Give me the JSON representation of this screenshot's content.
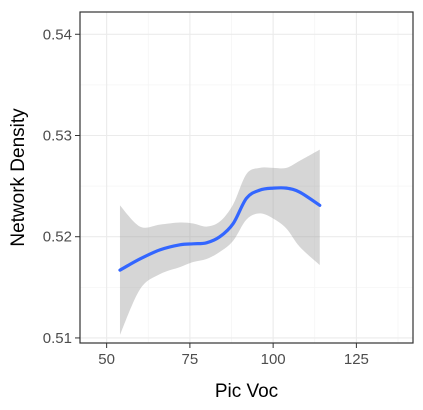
{
  "chart_data": {
    "type": "line",
    "title": "",
    "xlabel": "Pic Voc",
    "ylabel": "Network Density",
    "xlim": [
      42,
      142
    ],
    "ylim": [
      0.5095,
      0.5422
    ],
    "x_ticks": [
      50,
      75,
      100,
      125
    ],
    "x_tick_labels": [
      "50",
      "75",
      "100",
      "125"
    ],
    "y_ticks": [
      0.51,
      0.52,
      0.53,
      0.54
    ],
    "y_tick_labels": [
      "0.51",
      "0.52",
      "0.53",
      "0.54"
    ],
    "grid": true,
    "colors": {
      "line": "#3366ff",
      "ribbon": "#999999"
    },
    "series": [
      {
        "x": [
          54,
          60,
          66,
          72,
          76,
          80,
          84,
          88,
          92,
          96,
          100,
          104,
          108,
          114
        ],
        "y": [
          0.5167,
          0.5178,
          0.5187,
          0.5192,
          0.5193,
          0.5194,
          0.52,
          0.5213,
          0.5238,
          0.5246,
          0.5248,
          0.5248,
          0.5244,
          0.5231
        ],
        "lower": [
          0.5103,
          0.5148,
          0.5163,
          0.517,
          0.5175,
          0.5178,
          0.5185,
          0.5196,
          0.5217,
          0.5223,
          0.5218,
          0.5208,
          0.519,
          0.5172
        ],
        "upper": [
          0.5231,
          0.521,
          0.5212,
          0.5214,
          0.5213,
          0.521,
          0.5215,
          0.5232,
          0.5262,
          0.5268,
          0.5268,
          0.5268,
          0.5275,
          0.5286
        ]
      }
    ]
  }
}
